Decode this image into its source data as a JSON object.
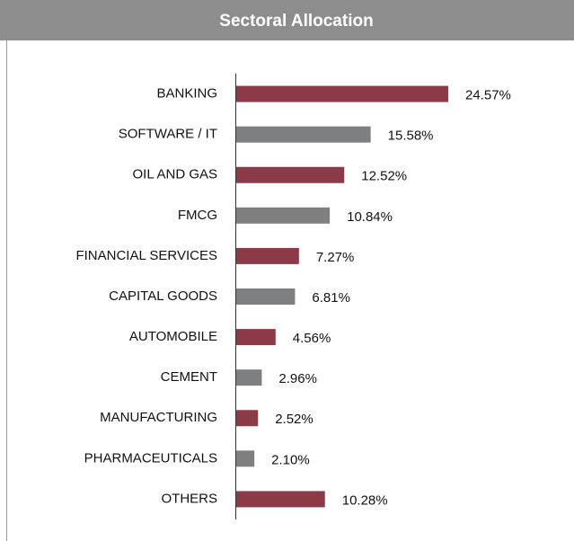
{
  "chart_data": {
    "type": "bar",
    "orientation": "horizontal",
    "title": "Sectoral Allocation",
    "categories": [
      "BANKING",
      "SOFTWARE / IT",
      "OIL AND GAS",
      "FMCG",
      "FINANCIAL SERVICES",
      "CAPITAL GOODS",
      "AUTOMOBILE",
      "CEMENT",
      "MANUFACTURING",
      "PHARMACEUTICALS",
      "OTHERS"
    ],
    "values": [
      24.57,
      15.58,
      12.52,
      10.84,
      7.27,
      6.81,
      4.56,
      2.96,
      2.52,
      2.1,
      10.28
    ],
    "value_labels": [
      "24.57%",
      "15.58%",
      "12.52%",
      "10.84%",
      "7.27%",
      "6.81%",
      "4.56%",
      "2.96%",
      "2.52%",
      "2.10%",
      "10.28%"
    ],
    "colors": [
      "#8c3a48",
      "#7e7f81",
      "#8c3a48",
      "#7e7f81",
      "#8c3a48",
      "#7e7f81",
      "#8c3a48",
      "#7e7f81",
      "#8c3a48",
      "#7e7f81",
      "#8c3a48"
    ]
  }
}
